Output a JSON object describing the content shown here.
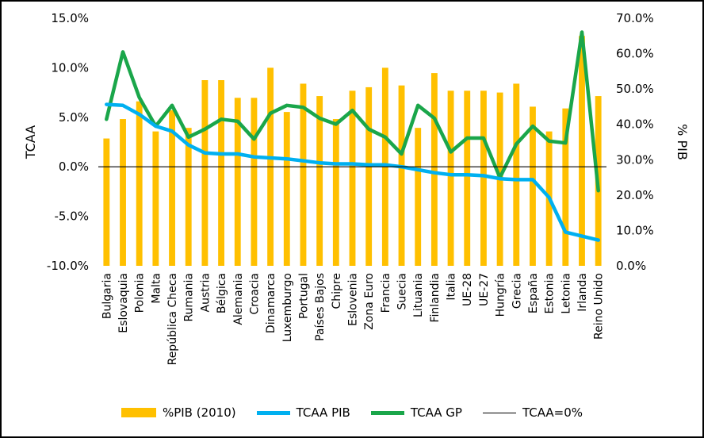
{
  "chart_data": {
    "type": "bar",
    "categories": [
      "Bulgaria",
      "Eslovaquia",
      "Polonia",
      "Malta",
      "República Checa",
      "Rumania",
      "Austria",
      "Bélgica",
      "Alemania",
      "Croacia",
      "Dinamarca",
      "Luxemburgo",
      "Portugal",
      "Países Bajos",
      "Chipre",
      "Eslovenia",
      "Zona Euro",
      "Francia",
      "Suecia",
      "Lituania",
      "Finlandia",
      "Italia",
      "UE-28",
      "UE-27",
      "Hungría",
      "Grecia",
      "España",
      "Estonia",
      "Letonia",
      "Irlanda",
      "Reino Unido"
    ],
    "series": [
      {
        "name": "%PIB (2010)",
        "type": "bar",
        "axis": "right",
        "color": "#FFC000",
        "values": [
          36.0,
          41.5,
          46.5,
          38.0,
          44.0,
          39.0,
          52.5,
          52.5,
          47.5,
          47.5,
          56.0,
          43.5,
          51.5,
          48.0,
          41.5,
          49.5,
          50.5,
          56.0,
          51.0,
          39.0,
          54.5,
          49.5,
          49.5,
          49.5,
          49.0,
          51.5,
          45.0,
          38.0,
          44.5,
          65.0,
          48.0
        ]
      },
      {
        "name": "TCAA PIB",
        "type": "line",
        "axis": "left",
        "color": "#00B0F0",
        "values": [
          6.3,
          6.2,
          5.3,
          4.1,
          3.6,
          2.2,
          1.4,
          1.3,
          1.3,
          1.0,
          0.9,
          0.8,
          0.6,
          0.4,
          0.3,
          0.3,
          0.2,
          0.2,
          0.0,
          -0.3,
          -0.6,
          -0.8,
          -0.8,
          -0.9,
          -1.2,
          -1.3,
          -1.3,
          -3.1,
          -6.6,
          -7.0,
          -7.4
        ]
      },
      {
        "name": "TCAA GP",
        "type": "line",
        "axis": "left",
        "color": "#1AA64A",
        "values": [
          4.8,
          11.6,
          7.0,
          4.1,
          6.2,
          3.0,
          3.8,
          4.8,
          4.6,
          2.8,
          5.4,
          6.2,
          6.0,
          4.9,
          4.3,
          5.7,
          3.8,
          3.0,
          1.3,
          6.2,
          4.9,
          1.5,
          2.9,
          2.9,
          -1.1,
          2.3,
          4.1,
          2.6,
          2.4,
          13.6,
          -2.4
        ]
      },
      {
        "name": "TCAA=0%",
        "type": "line",
        "axis": "left",
        "color": "#000000",
        "values": [
          0,
          0,
          0,
          0,
          0,
          0,
          0,
          0,
          0,
          0,
          0,
          0,
          0,
          0,
          0,
          0,
          0,
          0,
          0,
          0,
          0,
          0,
          0,
          0,
          0,
          0,
          0,
          0,
          0,
          0,
          0
        ]
      }
    ],
    "left_axis": {
      "label": "TCAA",
      "ylim": [
        -10,
        15
      ],
      "ticks": [
        "-10.0%",
        "-5.0%",
        "0.0%",
        "5.0%",
        "10.0%",
        "15.0%"
      ]
    },
    "right_axis": {
      "label": "% PIB",
      "ylim": [
        0,
        70
      ],
      "ticks": [
        "0.0%",
        "10.0%",
        "20.0%",
        "30.0%",
        "40.0%",
        "50.0%",
        "60.0%",
        "70.0%"
      ]
    },
    "legend": {
      "placement": "bottom",
      "items": [
        "%PIB (2010)",
        "TCAA PIB",
        "TCAA GP",
        "TCAA=0%"
      ]
    },
    "grid": false
  }
}
